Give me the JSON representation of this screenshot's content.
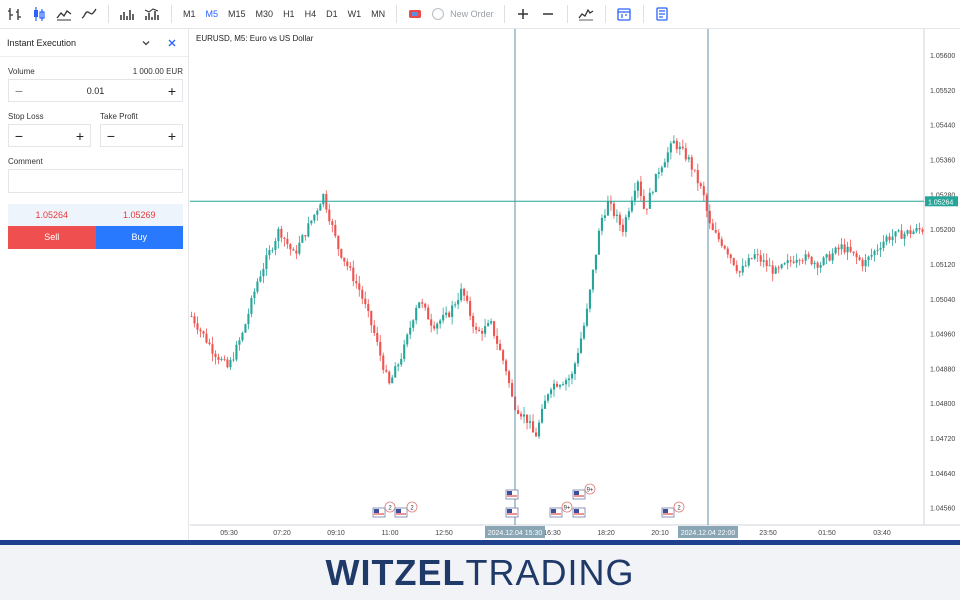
{
  "toolbar": {
    "timeframes": [
      "M1",
      "M5",
      "M15",
      "M30",
      "H1",
      "H4",
      "D1",
      "W1",
      "MN"
    ],
    "active_timeframe": "M5",
    "new_order_label": "New Order",
    "icons": [
      "crosshair-icon",
      "candlestick-icon",
      "area-chart-icon",
      "line-chart-icon",
      "bar-volume-icon",
      "bar-chart-icon",
      "flag-icon",
      "new-order-icon",
      "zoom-in-icon",
      "zoom-out-icon",
      "indicators-icon",
      "calendar-icon",
      "notes-icon"
    ]
  },
  "panel": {
    "title": "Instant Execution",
    "volume_label": "Volume",
    "volume_amount": "1 000.00 EUR",
    "volume_value": "0.01",
    "stop_loss_label": "Stop Loss",
    "take_profit_label": "Take Profit",
    "comment_label": "Comment",
    "bid": "1.05264",
    "ask": "1.05269",
    "sell_label": "Sell",
    "buy_label": "Buy"
  },
  "chart": {
    "title": "EURUSD, M5: Euro vs US Dollar",
    "price_labels": [
      "1.05600",
      "1.05520",
      "1.05440",
      "1.05360",
      "1.05280",
      "1.05200",
      "1.05120",
      "1.05040",
      "1.04960",
      "1.04880",
      "1.04800",
      "1.04720",
      "1.04640",
      "1.04560"
    ],
    "current_price": "1.05264",
    "time_labels": [
      "05:30",
      "07:20",
      "09:10",
      "11:00",
      "12:50",
      "16:30",
      "18:20",
      "20:10",
      "23:50",
      "01:50",
      "03:40"
    ],
    "crosshair_times": [
      "2024.12.04 15:30",
      "2024.12.04 22:00"
    ],
    "events": [
      {
        "badge": "2",
        "row": "bottom"
      },
      {
        "badge": "2",
        "row": "bottom"
      },
      {
        "badge": "",
        "row": "top"
      },
      {
        "badge": "",
        "row": "bottom"
      },
      {
        "badge": "9+",
        "row": "bottom"
      },
      {
        "badge": "9+",
        "row": "top"
      },
      {
        "badge": "",
        "row": "bottom"
      },
      {
        "badge": "2",
        "row": "bottom"
      }
    ],
    "colors": {
      "up": "#26a69a",
      "down": "#ef5350",
      "price_line": "#26a69a",
      "crosshair": "#5d8fa6"
    }
  },
  "chart_data": {
    "type": "candlestick",
    "symbol": "EURUSD",
    "timeframe": "M5",
    "ylim": [
      1.0452,
      1.0566
    ],
    "price_path": [
      [
        0,
        1.05
      ],
      [
        0.03,
        1.0492
      ],
      [
        0.05,
        1.0488
      ],
      [
        0.07,
        1.0496
      ],
      [
        0.09,
        1.0508
      ],
      [
        0.12,
        1.052
      ],
      [
        0.14,
        1.0514
      ],
      [
        0.17,
        1.0524
      ],
      [
        0.18,
        1.0528
      ],
      [
        0.2,
        1.0516
      ],
      [
        0.23,
        1.0506
      ],
      [
        0.25,
        1.0496
      ],
      [
        0.27,
        1.0484
      ],
      [
        0.29,
        1.0492
      ],
      [
        0.31,
        1.0504
      ],
      [
        0.33,
        1.0498
      ],
      [
        0.35,
        1.05
      ],
      [
        0.37,
        1.0506
      ],
      [
        0.39,
        1.0496
      ],
      [
        0.41,
        1.0498
      ],
      [
        0.43,
        1.0488
      ],
      [
        0.44,
        1.048
      ],
      [
        0.46,
        1.0476
      ],
      [
        0.47,
        1.0472
      ],
      [
        0.49,
        1.0484
      ],
      [
        0.52,
        1.0486
      ],
      [
        0.54,
        1.05
      ],
      [
        0.56,
        1.0522
      ],
      [
        0.57,
        1.0526
      ],
      [
        0.59,
        1.052
      ],
      [
        0.61,
        1.0532
      ],
      [
        0.62,
        1.0524
      ],
      [
        0.64,
        1.0534
      ],
      [
        0.66,
        1.054
      ],
      [
        0.68,
        1.0536
      ],
      [
        0.7,
        1.0528
      ],
      [
        0.71,
        1.052
      ],
      [
        0.73,
        1.0516
      ],
      [
        0.75,
        1.051
      ],
      [
        0.77,
        1.0514
      ],
      [
        0.8,
        1.051
      ],
      [
        0.83,
        1.0514
      ],
      [
        0.86,
        1.0512
      ],
      [
        0.89,
        1.0516
      ],
      [
        0.92,
        1.0512
      ],
      [
        0.95,
        1.0518
      ],
      [
        1.0,
        1.052
      ]
    ]
  },
  "brand": {
    "part1": "WITZEL",
    "part2": "TRADING"
  }
}
